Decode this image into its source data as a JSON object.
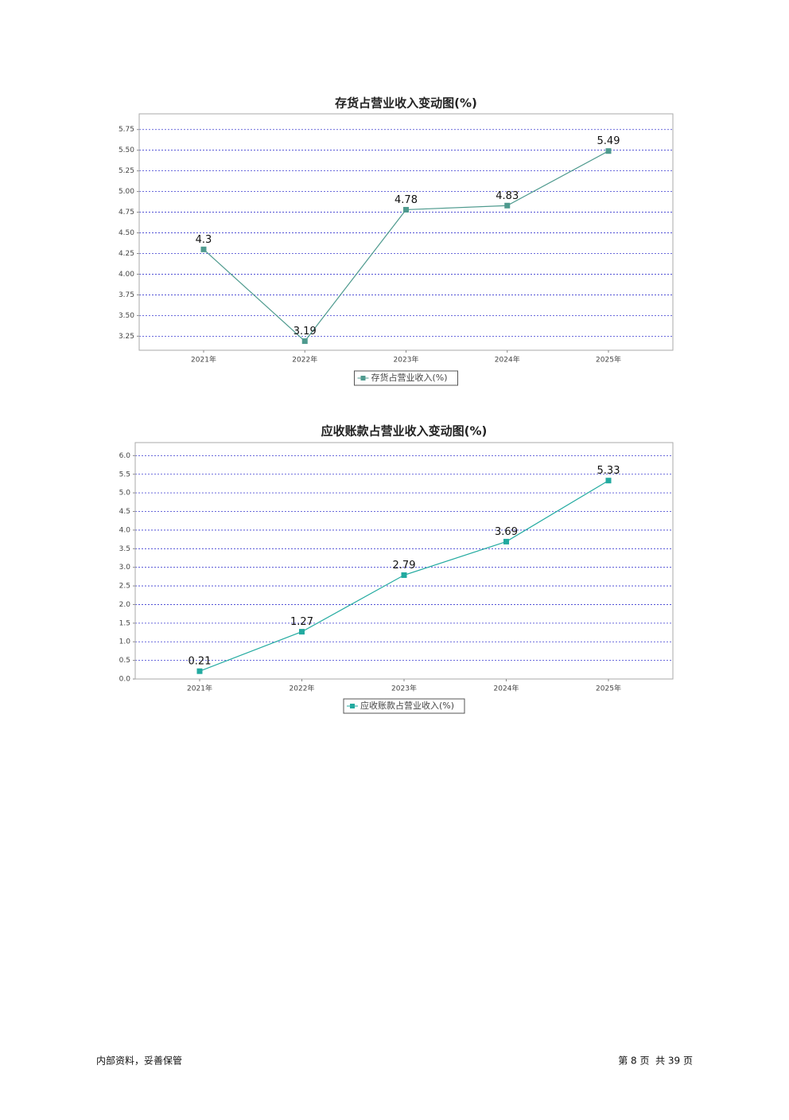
{
  "chart_data": [
    {
      "type": "line",
      "title": "存货占营业收入变动图(%)",
      "categories": [
        "2021年",
        "2022年",
        "2023年",
        "2024年",
        "2025年"
      ],
      "series": [
        {
          "name": "存货占营业收入(%)",
          "color": "#4e9a8e",
          "values": [
            4.3,
            3.19,
            4.78,
            4.83,
            5.49
          ]
        }
      ],
      "ylim": [
        3.08,
        5.94
      ],
      "yticks": [
        3.25,
        {
          "value": 3.5,
          "label": "3.50"
        },
        3.75,
        {
          "value": 4,
          "label": "4.00"
        },
        4.25,
        {
          "value": 4.5,
          "label": "4.50"
        },
        4.75,
        {
          "value": 5,
          "label": "5.00"
        },
        5.25,
        {
          "value": 5.5,
          "label": "5.50"
        },
        5.75
      ],
      "grid": true,
      "legend": "bottom"
    },
    {
      "type": "line",
      "title": "应收账款占营业收入变动图(%)",
      "categories": [
        "2021年",
        "2022年",
        "2023年",
        "2024年",
        "2025年"
      ],
      "series": [
        {
          "name": "应收账款占营业收入(%)",
          "color": "#22aaa0",
          "values": [
            0.21,
            1.27,
            2.79,
            3.69,
            5.33
          ]
        }
      ],
      "ylim": [
        0,
        6.35
      ],
      "yticks": [
        {
          "value": 0,
          "label": "0.0"
        },
        0.5,
        {
          "value": 1,
          "label": "1.0"
        },
        1.5,
        {
          "value": 2,
          "label": "2.0"
        },
        2.5,
        {
          "value": 3,
          "label": "3.0"
        },
        3.5,
        {
          "value": 4,
          "label": "4.0"
        },
        4.5,
        {
          "value": 5,
          "label": "5.0"
        },
        5.5,
        {
          "value": 6,
          "label": "6.0"
        }
      ],
      "grid": true,
      "legend": "bottom"
    }
  ],
  "footer": {
    "left": "内部资料，妥善保管",
    "right": "第 8 页  共 39 页"
  }
}
